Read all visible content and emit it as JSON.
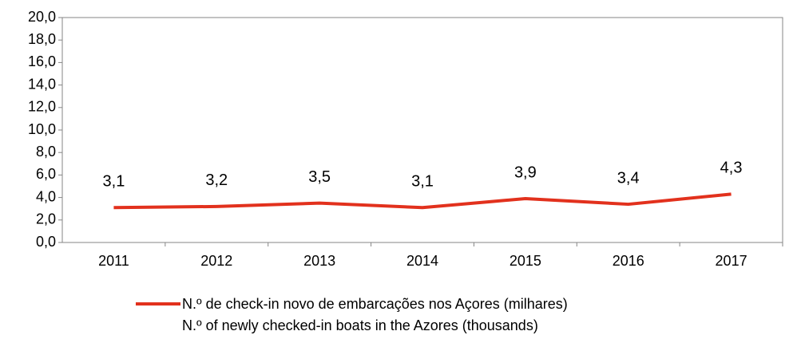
{
  "chart_data": {
    "type": "line",
    "categories": [
      "2011",
      "2012",
      "2013",
      "2014",
      "2015",
      "2016",
      "2017"
    ],
    "series": [
      {
        "name": "N.º de check-in novo de embarcações nos Açores (milhares)\nN.º of newly checked-in boats in the Azores (thousands)",
        "color": "#e2311d",
        "values": [
          3.1,
          3.2,
          3.5,
          3.1,
          3.9,
          3.4,
          4.3
        ],
        "value_labels": [
          "3,1",
          "3,2",
          "3,5",
          "3,1",
          "3,9",
          "3,4",
          "4,3"
        ]
      }
    ],
    "ylim": [
      0,
      20
    ],
    "yticks": [
      {
        "value": 0,
        "label": "0,0"
      },
      {
        "value": 2,
        "label": "2,0"
      },
      {
        "value": 4,
        "label": "4,0"
      },
      {
        "value": 6,
        "label": "6,0"
      },
      {
        "value": 8,
        "label": "8,0"
      },
      {
        "value": 10,
        "label": "10,0"
      },
      {
        "value": 12,
        "label": "12,0"
      },
      {
        "value": 14,
        "label": "14,0"
      },
      {
        "value": 16,
        "label": "16,0"
      },
      {
        "value": 18,
        "label": "18,0"
      },
      {
        "value": 20,
        "label": "20,0"
      }
    ],
    "grid": false,
    "legend": "bottom"
  }
}
